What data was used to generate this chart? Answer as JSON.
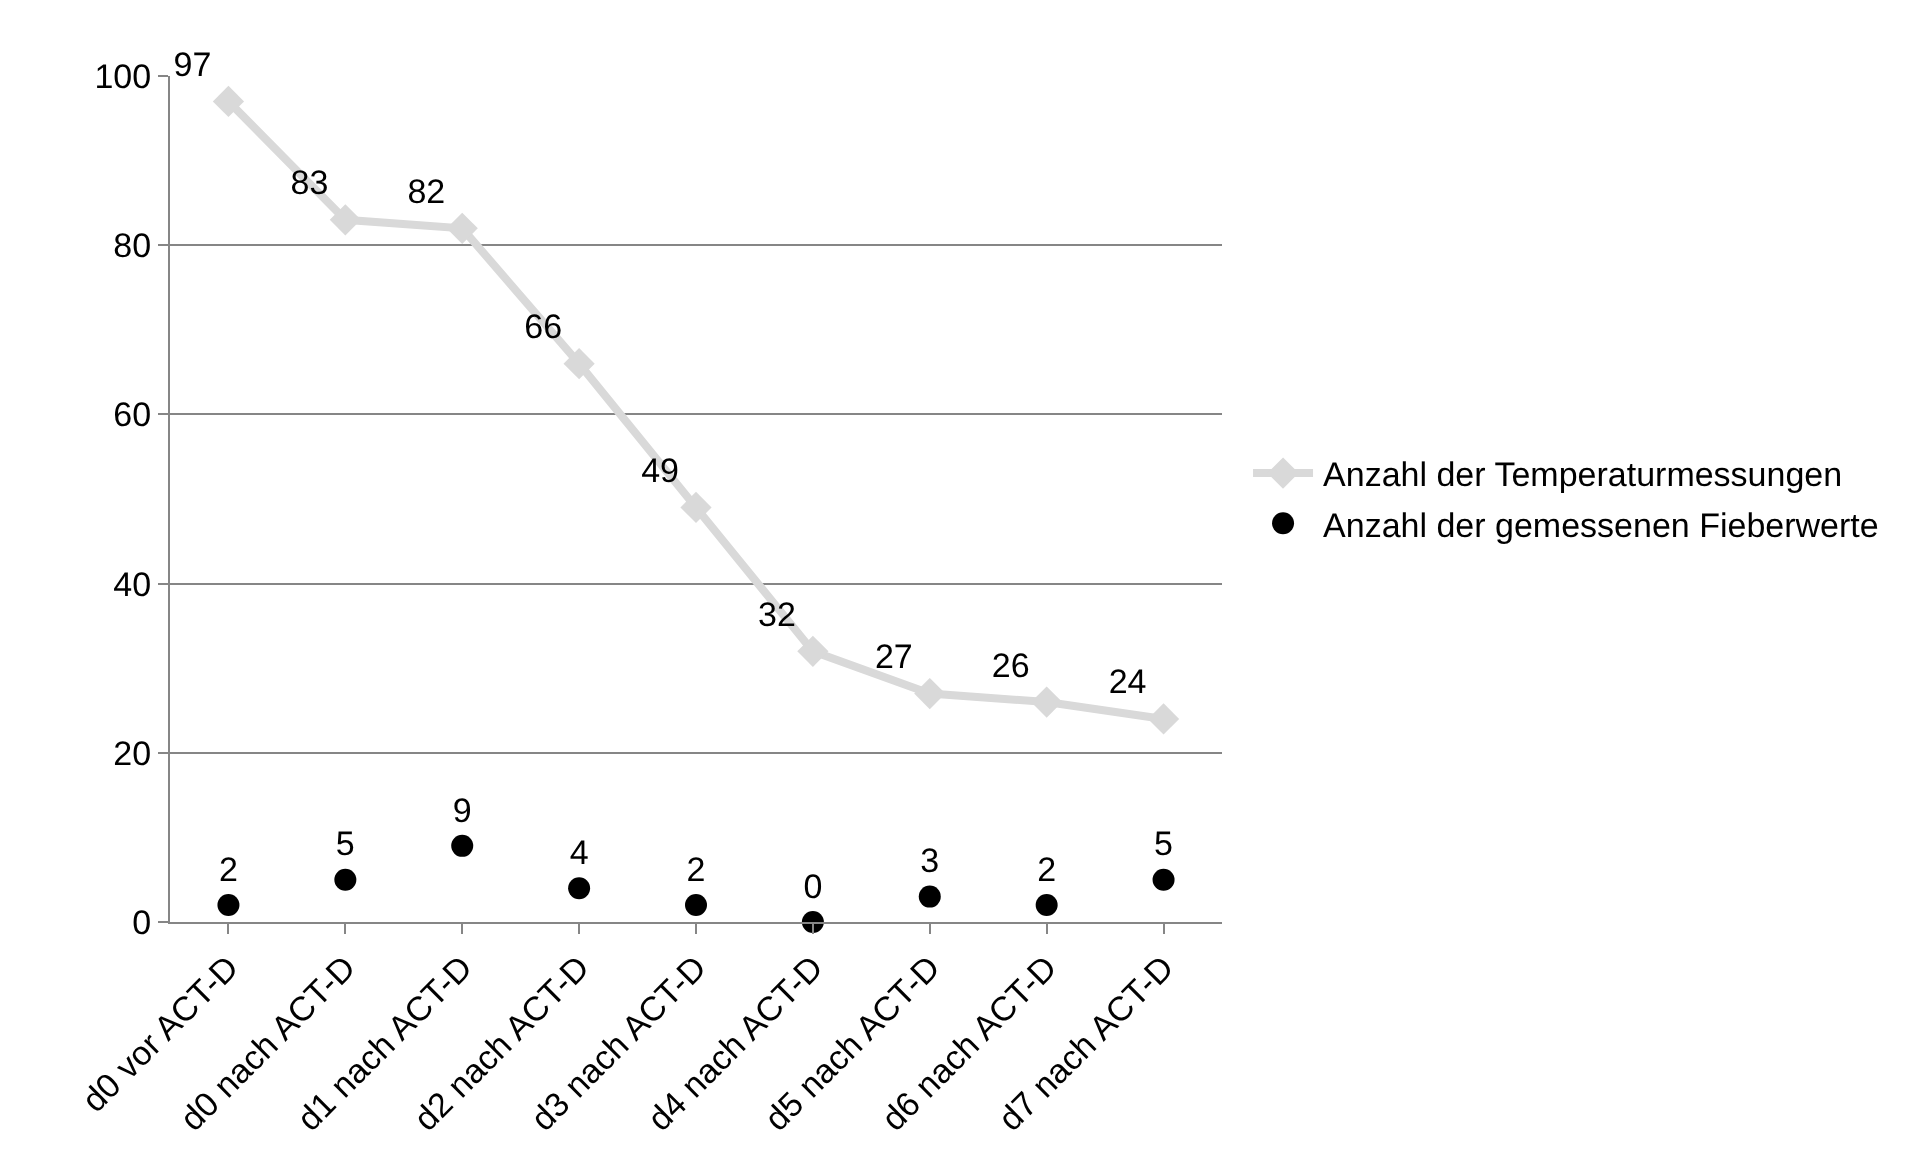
{
  "chart_data": {
    "type": "line",
    "categories": [
      "d0 vor ACT-D",
      "d0 nach ACT-D",
      "d1 nach ACT-D",
      "d2 nach ACT-D",
      "d3 nach ACT-D",
      "d4 nach ACT-D",
      "d5 nach ACT-D",
      "d6 nach ACT-D",
      "d7 nach ACT-D"
    ],
    "series": [
      {
        "name": "Anzahl der Temperaturmessungen",
        "color": "#d9d9d9",
        "marker": "diamond",
        "values": [
          97,
          83,
          82,
          66,
          49,
          32,
          27,
          26,
          24
        ]
      },
      {
        "name": "Anzahl der gemessenen Fieberwerte",
        "type": "scatter",
        "color": "#000000",
        "marker": "circle",
        "values": [
          2,
          5,
          9,
          4,
          2,
          0,
          3,
          2,
          5
        ]
      }
    ],
    "ylim": [
      0,
      100
    ],
    "yticks": [
      0,
      20,
      40,
      60,
      80,
      100
    ],
    "grid": "y",
    "legend": "right",
    "data_labels": true
  }
}
